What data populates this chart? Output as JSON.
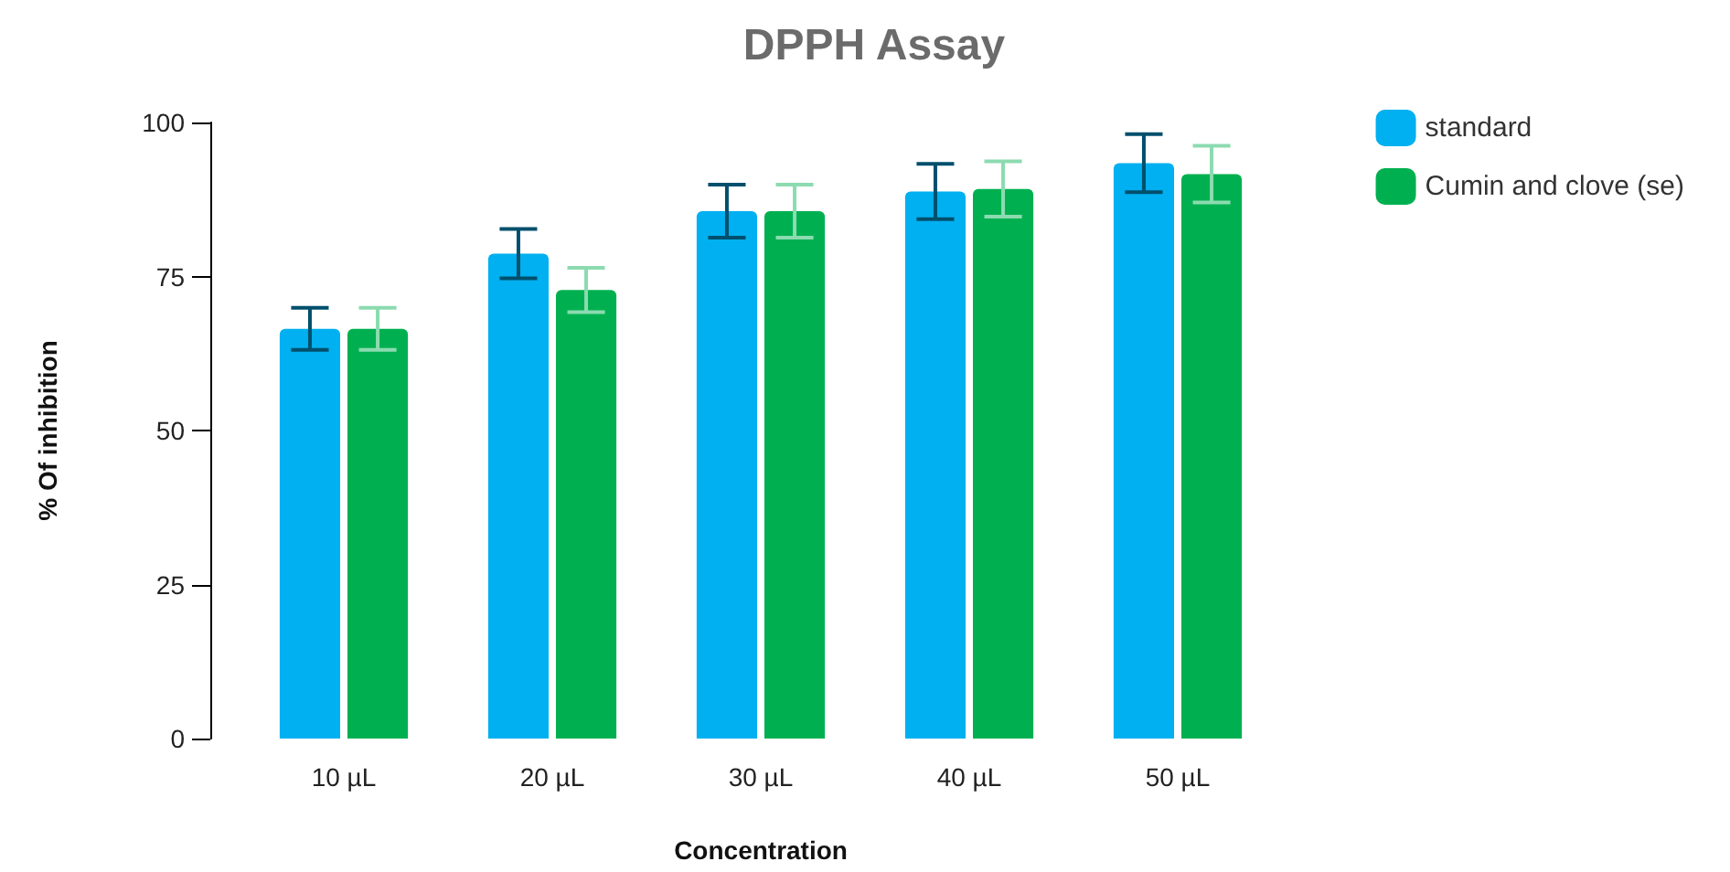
{
  "chart_data": {
    "type": "bar",
    "title": "DPPH Assay",
    "xlabel": "Concentration",
    "ylabel": "% Of inhibition",
    "categories": [
      "10 µL",
      "20 µL",
      "30 µL",
      "40 µL",
      "50 µL"
    ],
    "series": [
      {
        "name": "standard",
        "color": "#00b0f0",
        "values": [
          66.5,
          78.7,
          85.6,
          88.8,
          93.4
        ],
        "errors": [
          3.4,
          4,
          4.3,
          4.5,
          4.7
        ]
      },
      {
        "name": "Cumin and clove (se)",
        "color": "#00b050",
        "values": [
          66.5,
          72.8,
          85.6,
          89.2,
          91.6
        ],
        "errors": [
          3.4,
          3.6,
          4.3,
          4.5,
          4.6
        ]
      }
    ],
    "ylim": [
      0,
      100
    ],
    "yticks": [
      0,
      25,
      50,
      75,
      100
    ],
    "grid": false,
    "legend": "top right"
  }
}
